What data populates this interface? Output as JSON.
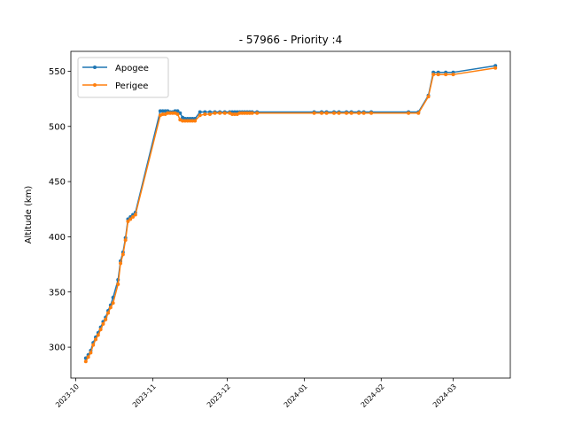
{
  "chart_data": {
    "type": "line",
    "title": "- 57966 - Priority :4",
    "xlabel": "",
    "ylabel": "Altitude (km)",
    "x_ticks": [
      "2023-10",
      "2023-11",
      "2023-12",
      "2024-01",
      "2024-02",
      "2024-03"
    ],
    "y_ticks": [
      300,
      350,
      400,
      450,
      500,
      550
    ],
    "xlim": [
      "2023-09-29",
      "2024-03-24"
    ],
    "ylim": [
      272,
      568
    ],
    "legend": {
      "position": "upper-left"
    },
    "grid": false,
    "series": [
      {
        "name": "Apogee",
        "color": "#1f77b4",
        "x": [
          "2023-10-05",
          "2023-10-06",
          "2023-10-07",
          "2023-10-08",
          "2023-10-09",
          "2023-10-10",
          "2023-10-11",
          "2023-10-12",
          "2023-10-13",
          "2023-10-14",
          "2023-10-15",
          "2023-10-16",
          "2023-10-18",
          "2023-10-19",
          "2023-10-20",
          "2023-10-21",
          "2023-10-22",
          "2023-10-23",
          "2023-10-24",
          "2023-10-25",
          "2023-11-04",
          "2023-11-05",
          "2023-11-06",
          "2023-11-07",
          "2023-11-08",
          "2023-11-09",
          "2023-11-10",
          "2023-11-11",
          "2023-11-12",
          "2023-11-13",
          "2023-11-14",
          "2023-11-15",
          "2023-11-16",
          "2023-11-17",
          "2023-11-18",
          "2023-11-20",
          "2023-11-22",
          "2023-11-24",
          "2023-11-26",
          "2023-11-28",
          "2023-11-30",
          "2023-12-02",
          "2023-12-03",
          "2023-12-04",
          "2023-12-05",
          "2023-12-06",
          "2023-12-07",
          "2023-12-08",
          "2023-12-09",
          "2023-12-10",
          "2023-12-11",
          "2023-12-13",
          "2024-01-05",
          "2024-01-08",
          "2024-01-10",
          "2024-01-13",
          "2024-01-15",
          "2024-01-18",
          "2024-01-20",
          "2024-01-23",
          "2024-01-25",
          "2024-01-28",
          "2024-02-12",
          "2024-02-16",
          "2024-02-20",
          "2024-02-22",
          "2024-02-24",
          "2024-02-27",
          "2024-03-01",
          "2024-03-18"
        ],
        "values": [
          290,
          293,
          297,
          304,
          309,
          313,
          318,
          323,
          327,
          333,
          338,
          345,
          361,
          378,
          386,
          399,
          416,
          418,
          420,
          422,
          514,
          514,
          514,
          514,
          513,
          513,
          514,
          514,
          512,
          508,
          507,
          507,
          507,
          507,
          507,
          513,
          513,
          513,
          513,
          513,
          513,
          513,
          513,
          513,
          513,
          513,
          513,
          513,
          513,
          513,
          513,
          513,
          513,
          513,
          513,
          513,
          513,
          513,
          513,
          513,
          513,
          513,
          513,
          513,
          528,
          549,
          549,
          549,
          549,
          555
        ]
      },
      {
        "name": "Perigee",
        "color": "#ff7f0e",
        "x": [
          "2023-10-05",
          "2023-10-06",
          "2023-10-07",
          "2023-10-08",
          "2023-10-09",
          "2023-10-10",
          "2023-10-11",
          "2023-10-12",
          "2023-10-13",
          "2023-10-14",
          "2023-10-15",
          "2023-10-16",
          "2023-10-18",
          "2023-10-19",
          "2023-10-20",
          "2023-10-21",
          "2023-10-22",
          "2023-10-23",
          "2023-10-24",
          "2023-10-25",
          "2023-11-04",
          "2023-11-05",
          "2023-11-06",
          "2023-11-07",
          "2023-11-08",
          "2023-11-09",
          "2023-11-10",
          "2023-11-11",
          "2023-11-12",
          "2023-11-13",
          "2023-11-14",
          "2023-11-15",
          "2023-11-16",
          "2023-11-17",
          "2023-11-18",
          "2023-11-20",
          "2023-11-22",
          "2023-11-24",
          "2023-11-26",
          "2023-11-28",
          "2023-11-30",
          "2023-12-02",
          "2023-12-03",
          "2023-12-04",
          "2023-12-05",
          "2023-12-06",
          "2023-12-07",
          "2023-12-08",
          "2023-12-09",
          "2023-12-10",
          "2023-12-11",
          "2023-12-13",
          "2024-01-05",
          "2024-01-08",
          "2024-01-10",
          "2024-01-13",
          "2024-01-15",
          "2024-01-18",
          "2024-01-20",
          "2024-01-23",
          "2024-01-25",
          "2024-01-28",
          "2024-02-12",
          "2024-02-16",
          "2024-02-20",
          "2024-02-22",
          "2024-02-24",
          "2024-02-27",
          "2024-03-01",
          "2024-03-18"
        ],
        "values": [
          287,
          291,
          295,
          302,
          307,
          311,
          316,
          321,
          325,
          331,
          336,
          340,
          357,
          376,
          384,
          397,
          414,
          416,
          418,
          420,
          510,
          511,
          511,
          512,
          512,
          512,
          512,
          511,
          506,
          505,
          505,
          505,
          505,
          505,
          505,
          510,
          511,
          511,
          512,
          512,
          512,
          512,
          511,
          511,
          511,
          512,
          512,
          512,
          512,
          512,
          512,
          512,
          512,
          512,
          512,
          512,
          512,
          512,
          512,
          512,
          512,
          512,
          512,
          512,
          527,
          547,
          547,
          547,
          547,
          553
        ]
      }
    ]
  }
}
